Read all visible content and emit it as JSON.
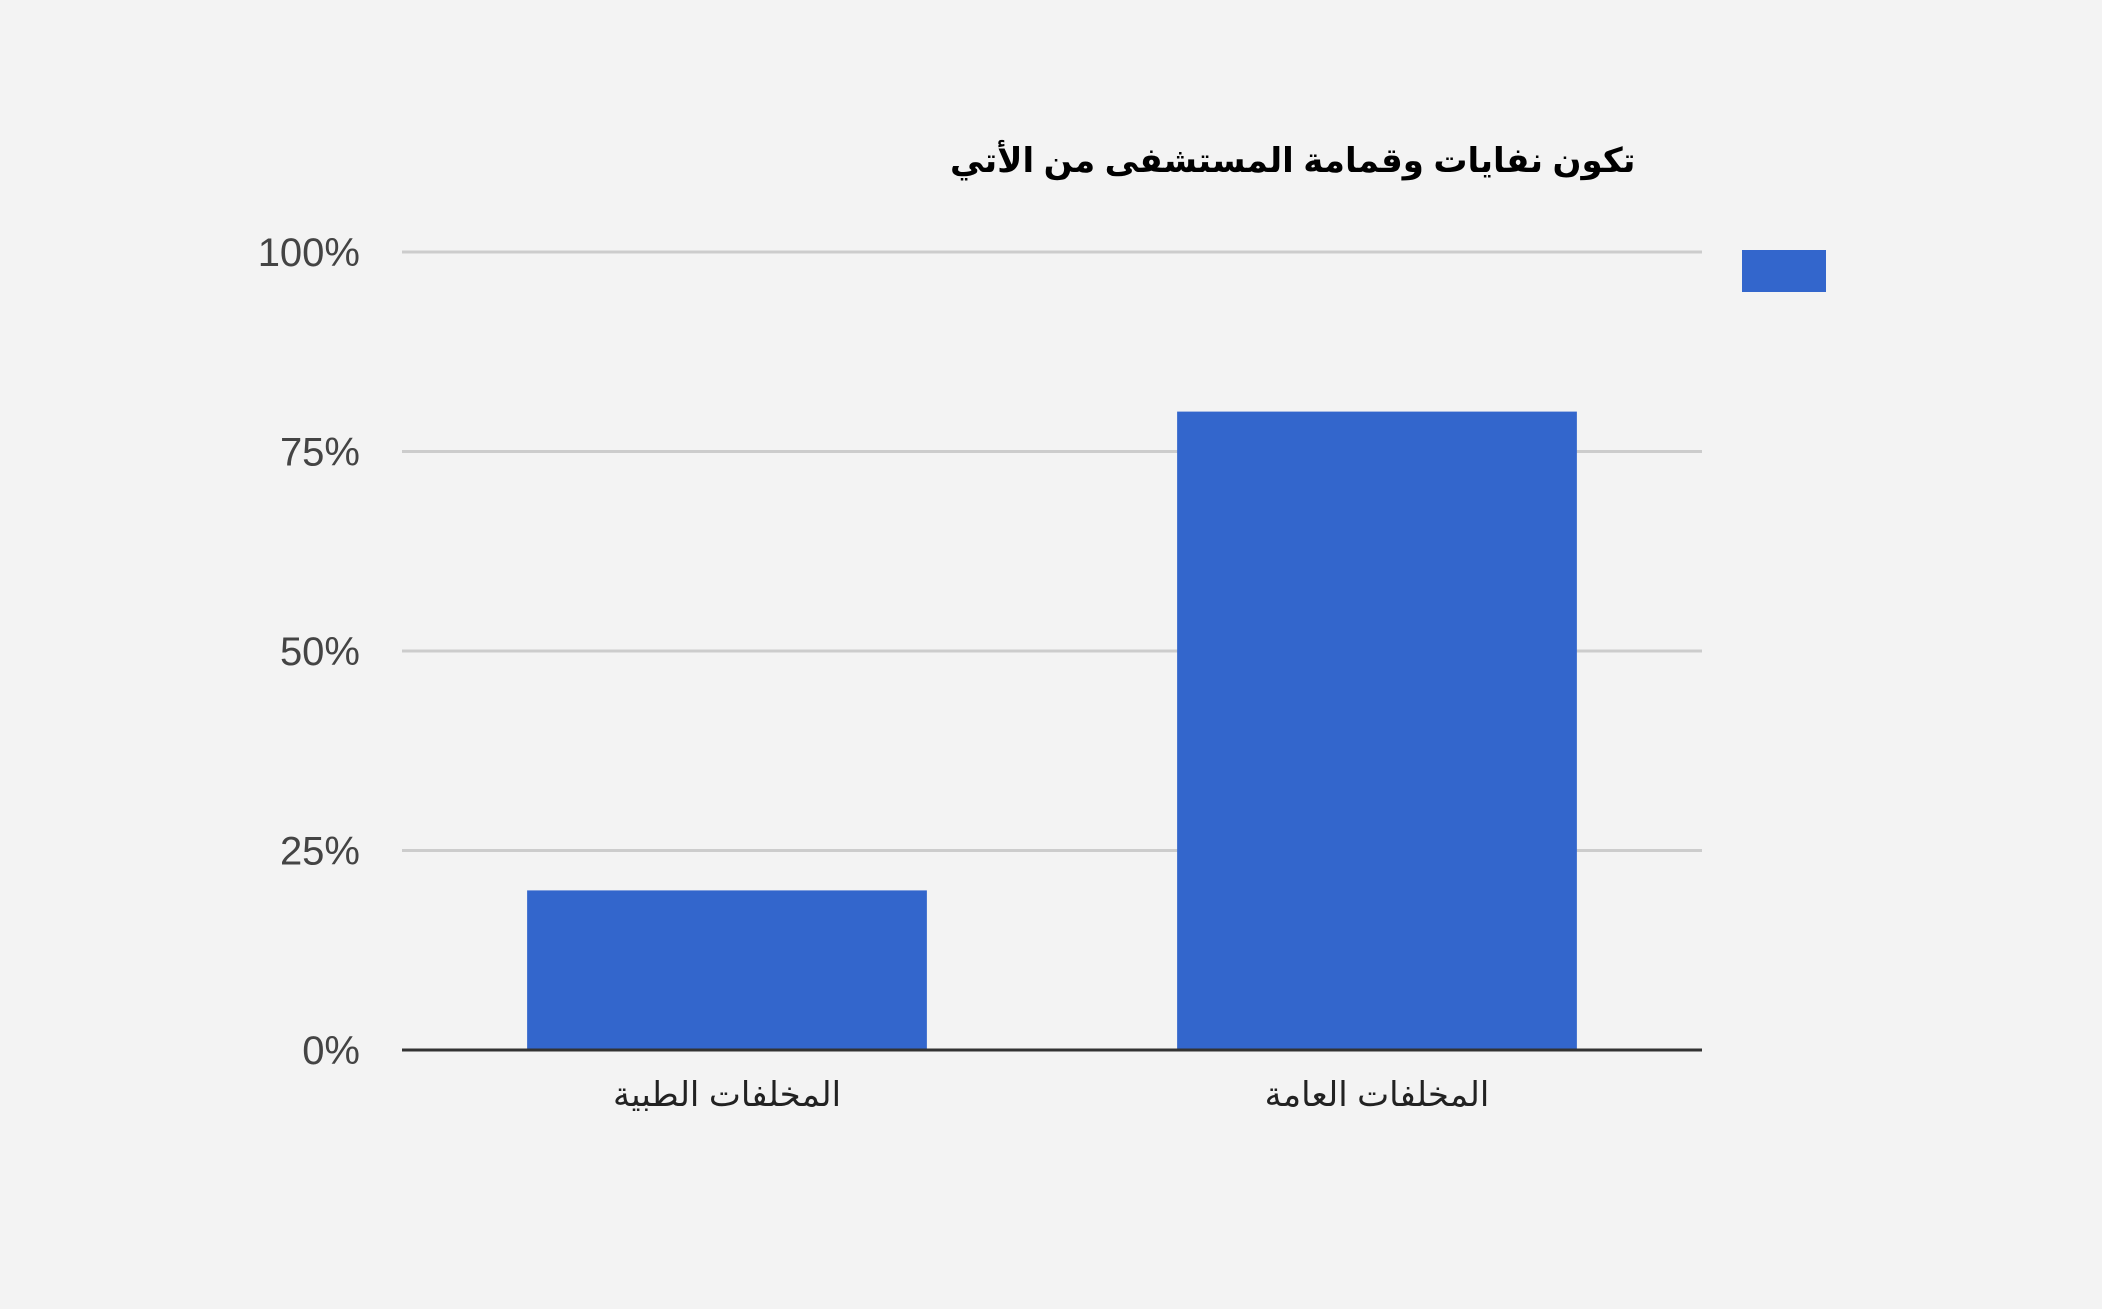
{
  "chart_data": {
    "type": "bar",
    "title": "تكون نفايات وقمامة المستشفى من الأتي",
    "categories": [
      "المخلفات الطبية",
      "المخلفات العامة"
    ],
    "series": [
      {
        "values": [
          20,
          80
        ]
      }
    ],
    "ylim": [
      0,
      100
    ],
    "yticks": [
      0,
      25,
      50,
      75,
      100
    ],
    "ytick_labels": [
      "0%",
      "25%",
      "50%",
      "75%",
      "100%"
    ],
    "grid": true,
    "legend_position": "right",
    "colors": {
      "bar": "#3366cc",
      "grid": "#cccccc",
      "axis": "#333333",
      "background": "#f3f3f3"
    }
  }
}
